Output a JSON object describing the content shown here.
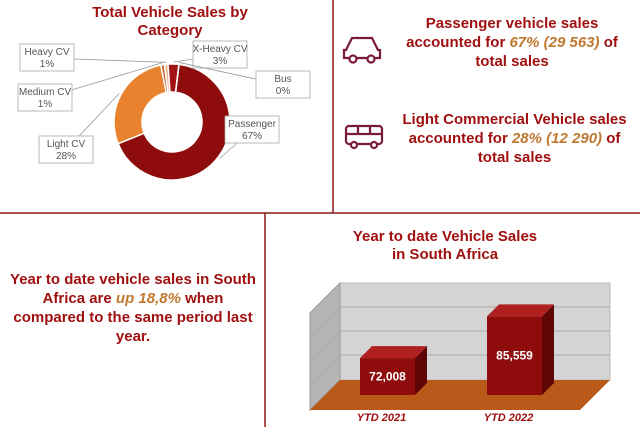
{
  "chart_data": [
    {
      "type": "donut",
      "title": "Total Vehicle Sales by Category",
      "categories": [
        "Passenger",
        "Light CV",
        "Medium CV",
        "Heavy CV",
        "X-Heavy CV",
        "Bus"
      ],
      "values": [
        67,
        28,
        1,
        1,
        3,
        0
      ],
      "value_labels": [
        "67%",
        "28%",
        "1%",
        "1%",
        "3%",
        "0%"
      ],
      "colors": [
        "#8e0c0c",
        "#e8822f",
        "#c8642a",
        "#e0b090",
        "#a31515",
        "#7a0a0a"
      ]
    },
    {
      "type": "bar3d",
      "title": "Year to date Vehicle Sales in South Africa",
      "categories": [
        "YTD 2021",
        "YTD 2022"
      ],
      "values": [
        72008,
        85559
      ],
      "value_labels": [
        "72,008",
        "85,559"
      ],
      "ylim": [
        60000,
        100000
      ],
      "color": "#8e0c0c"
    }
  ],
  "passenger_note": [
    "Passenger vehicle sales accounted for",
    "67% (29 563)",
    "of total sales"
  ],
  "lcv_note": [
    "Light Commercial Vehicle sales accounted for",
    "28% (12 290)",
    "of total sales"
  ],
  "ytd_note": [
    "Year to date vehicle sales in South Africa are",
    "up 18,8%",
    "when compared to the same period last year."
  ]
}
